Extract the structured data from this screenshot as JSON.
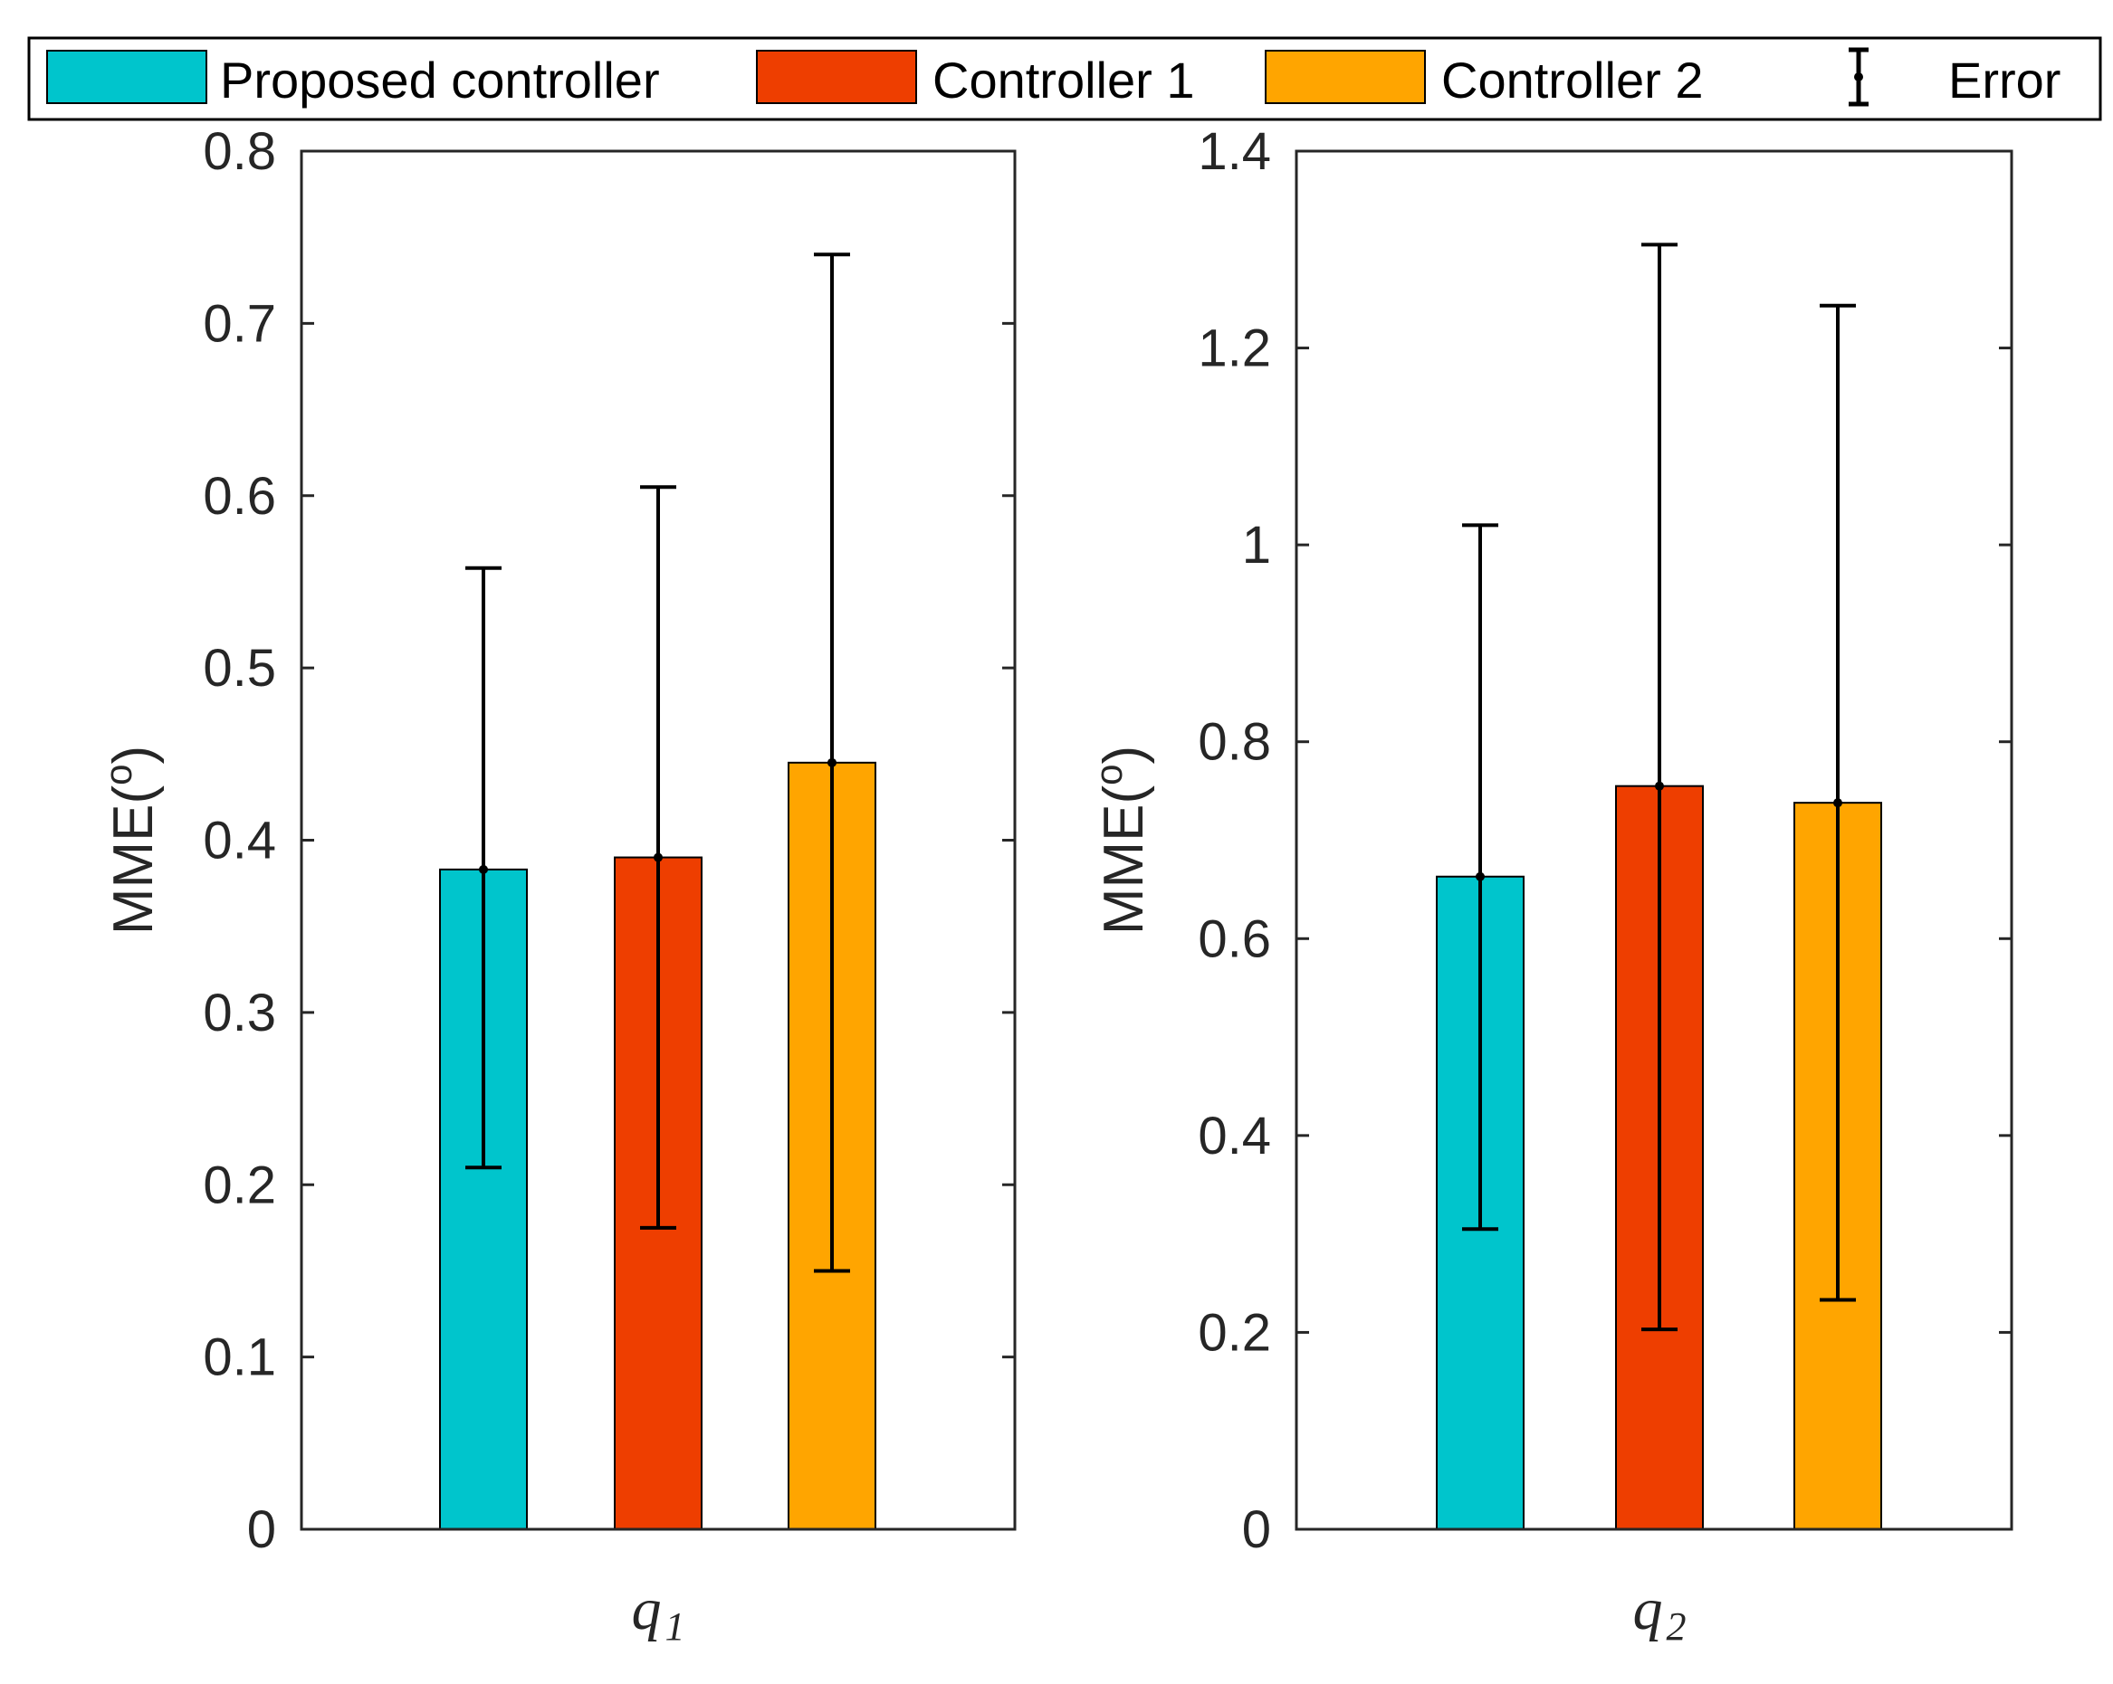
{
  "colors": {
    "proposed": "#00C5CC",
    "controller1": "#EE3E00",
    "controller2": "#FFA500",
    "axis": "#262626",
    "error": "#000000"
  },
  "legend": {
    "items": [
      {
        "label": "Proposed controller",
        "color_key": "proposed",
        "kind": "patch"
      },
      {
        "label": "Controller 1",
        "color_key": "controller1",
        "kind": "patch"
      },
      {
        "label": "Controller 2",
        "color_key": "controller2",
        "kind": "patch"
      },
      {
        "label": "Error",
        "kind": "errorbar"
      }
    ]
  },
  "chart_data": [
    {
      "type": "bar",
      "x_base": "q",
      "x_sub": "1",
      "ylabel_main": "MME(",
      "ylabel_sup": "o",
      "ylabel_close": ")",
      "ylim": [
        0,
        0.8
      ],
      "yticks": [
        0,
        0.1,
        0.2,
        0.3,
        0.4,
        0.5,
        0.6,
        0.7,
        0.8
      ],
      "ytick_labels": [
        "0",
        "0.1",
        "0.2",
        "0.3",
        "0.4",
        "0.5",
        "0.6",
        "0.7",
        "0.8"
      ],
      "series": [
        {
          "name": "Proposed controller",
          "value": 0.383,
          "err_low": 0.21,
          "err_high": 0.558
        },
        {
          "name": "Controller 1",
          "value": 0.39,
          "err_low": 0.175,
          "err_high": 0.605
        },
        {
          "name": "Controller 2",
          "value": 0.445,
          "err_low": 0.15,
          "err_high": 0.74
        }
      ]
    },
    {
      "type": "bar",
      "x_base": "q",
      "x_sub": "2",
      "ylabel_main": "MME(",
      "ylabel_sup": "o",
      "ylabel_close": ")",
      "ylim": [
        0,
        1.4
      ],
      "yticks": [
        0,
        0.2,
        0.4,
        0.6,
        0.8,
        1.0,
        1.2,
        1.4
      ],
      "ytick_labels": [
        "0",
        "0.2",
        "0.4",
        "0.6",
        "0.8",
        "1",
        "1.2",
        "1.4"
      ],
      "series": [
        {
          "name": "Proposed controller",
          "value": 0.663,
          "err_low": 0.305,
          "err_high": 1.02
        },
        {
          "name": "Controller 1",
          "value": 0.755,
          "err_low": 0.203,
          "err_high": 1.305
        },
        {
          "name": "Controller 2",
          "value": 0.738,
          "err_low": 0.233,
          "err_high": 1.243
        }
      ]
    }
  ]
}
